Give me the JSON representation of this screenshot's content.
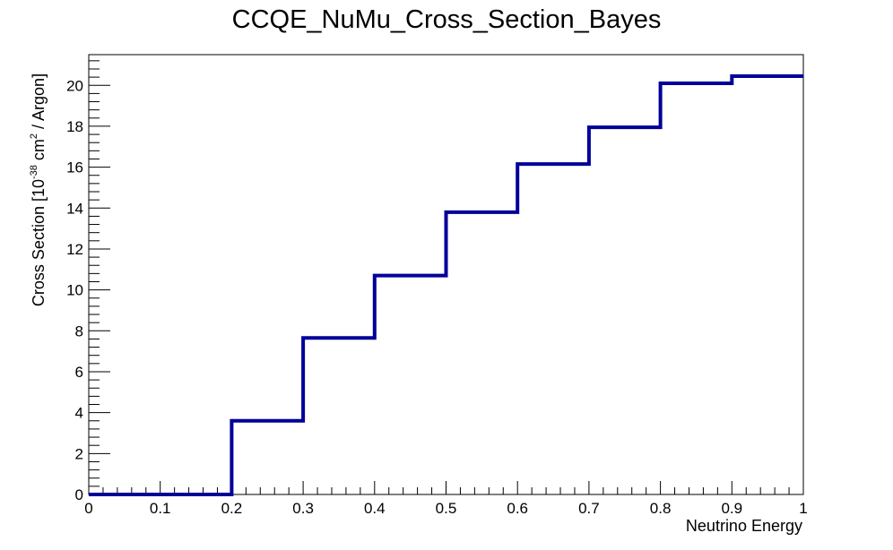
{
  "chart_data": {
    "type": "line",
    "style": "step-histogram",
    "title": "CCQE_NuMu_Cross_Section_Bayes",
    "xlabel": "Neutrino Energy",
    "ylabel": {
      "prefix": "Cross Section [10",
      "exp": "-38",
      "mid": " cm",
      "sup2": "2",
      "suffix": " / Argon]"
    },
    "xlim": [
      0,
      1
    ],
    "ylim": [
      0,
      21.5
    ],
    "x_ticks": [
      "0",
      "0.1",
      "0.2",
      "0.3",
      "0.4",
      "0.5",
      "0.6",
      "0.7",
      "0.8",
      "0.9",
      "1"
    ],
    "y_ticks": [
      "0",
      "2",
      "4",
      "6",
      "8",
      "10",
      "12",
      "14",
      "16",
      "18",
      "20"
    ],
    "bin_edges": [
      0,
      0.1,
      0.2,
      0.3,
      0.4,
      0.5,
      0.6,
      0.7,
      0.8,
      0.9,
      1.0
    ],
    "series": [
      {
        "values": [
          0,
          0,
          3.6,
          7.65,
          10.7,
          13.8,
          16.15,
          17.95,
          20.1,
          20.45
        ],
        "color": "#000099"
      }
    ],
    "grid": false,
    "legend": "none"
  }
}
